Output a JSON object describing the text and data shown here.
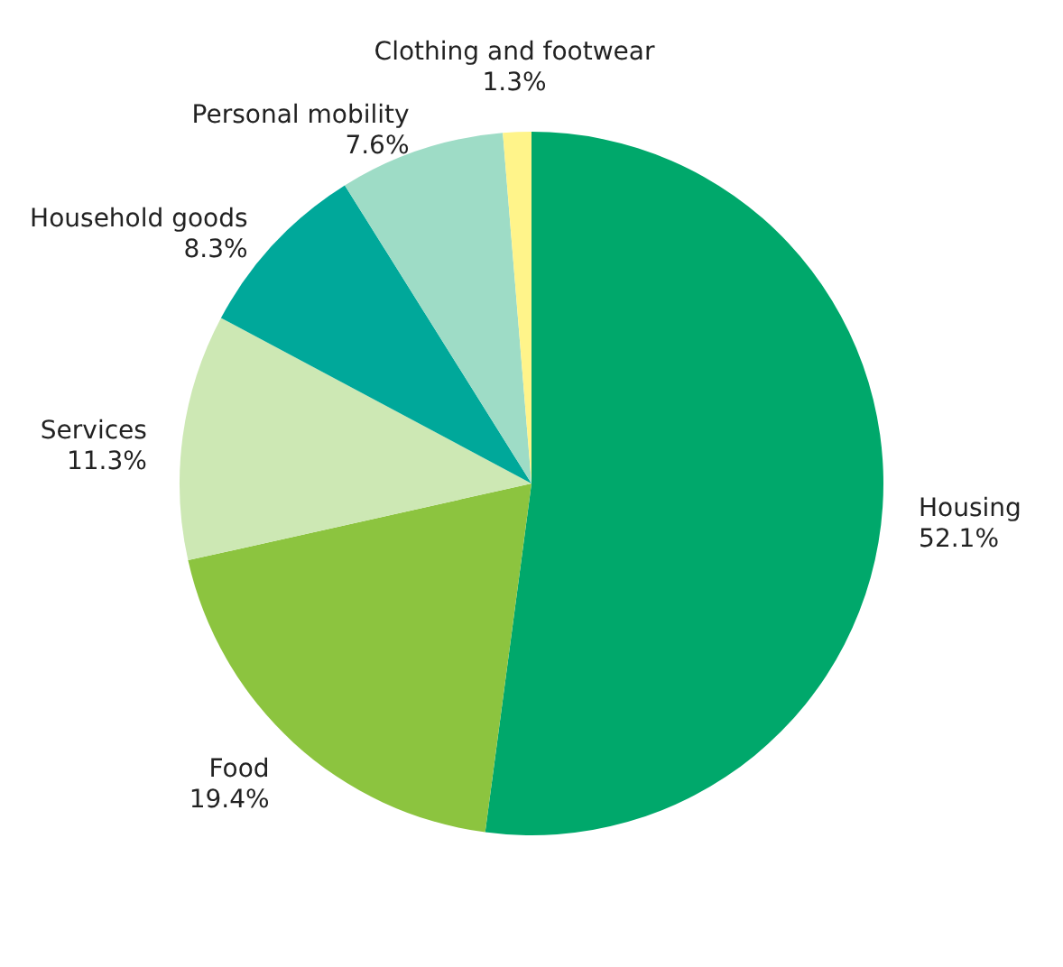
{
  "chart_data": {
    "type": "pie",
    "categories": [
      "Housing",
      "Food",
      "Services",
      "Household goods",
      "Personal mobility",
      "Clothing and footwear"
    ],
    "values": [
      52.1,
      19.4,
      11.3,
      8.3,
      7.6,
      1.3
    ],
    "value_labels": [
      "52.1%",
      "19.4%",
      "11.3%",
      "8.3%",
      "7.6%",
      "1.3%"
    ],
    "colors": [
      "#00a86b",
      "#8cc43f",
      "#cde8b4",
      "#00a89a",
      "#9edcc6",
      "#fff48a"
    ]
  }
}
